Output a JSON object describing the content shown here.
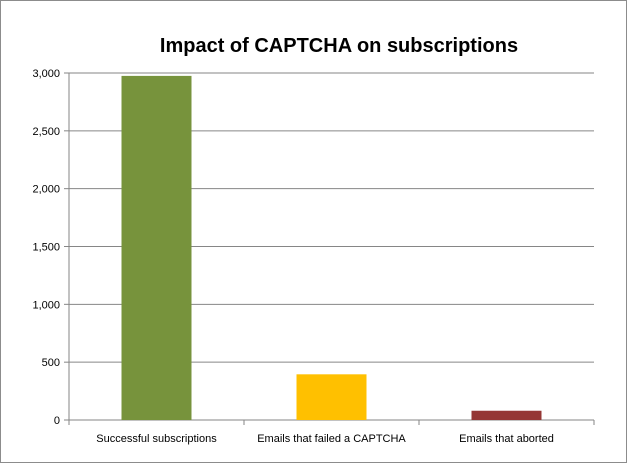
{
  "chart_data": {
    "type": "bar",
    "title": "Impact of CAPTCHA on subscriptions",
    "xlabel": "",
    "ylabel": "",
    "categories": [
      "Successful subscriptions",
      "Emails that failed a CAPTCHA",
      "Emails that aborted"
    ],
    "values": [
      2975,
      395,
      80
    ],
    "colors": [
      "#77933c",
      "#ffc000",
      "#953735"
    ],
    "ylim": [
      0,
      3000
    ],
    "yticks": [
      0,
      500,
      1000,
      1500,
      2000,
      2500,
      3000
    ],
    "ytick_labels": [
      "0",
      "500",
      "1,000",
      "1,500",
      "2,000",
      "2,500",
      "3,000"
    ],
    "grid": true,
    "legend": "none"
  }
}
